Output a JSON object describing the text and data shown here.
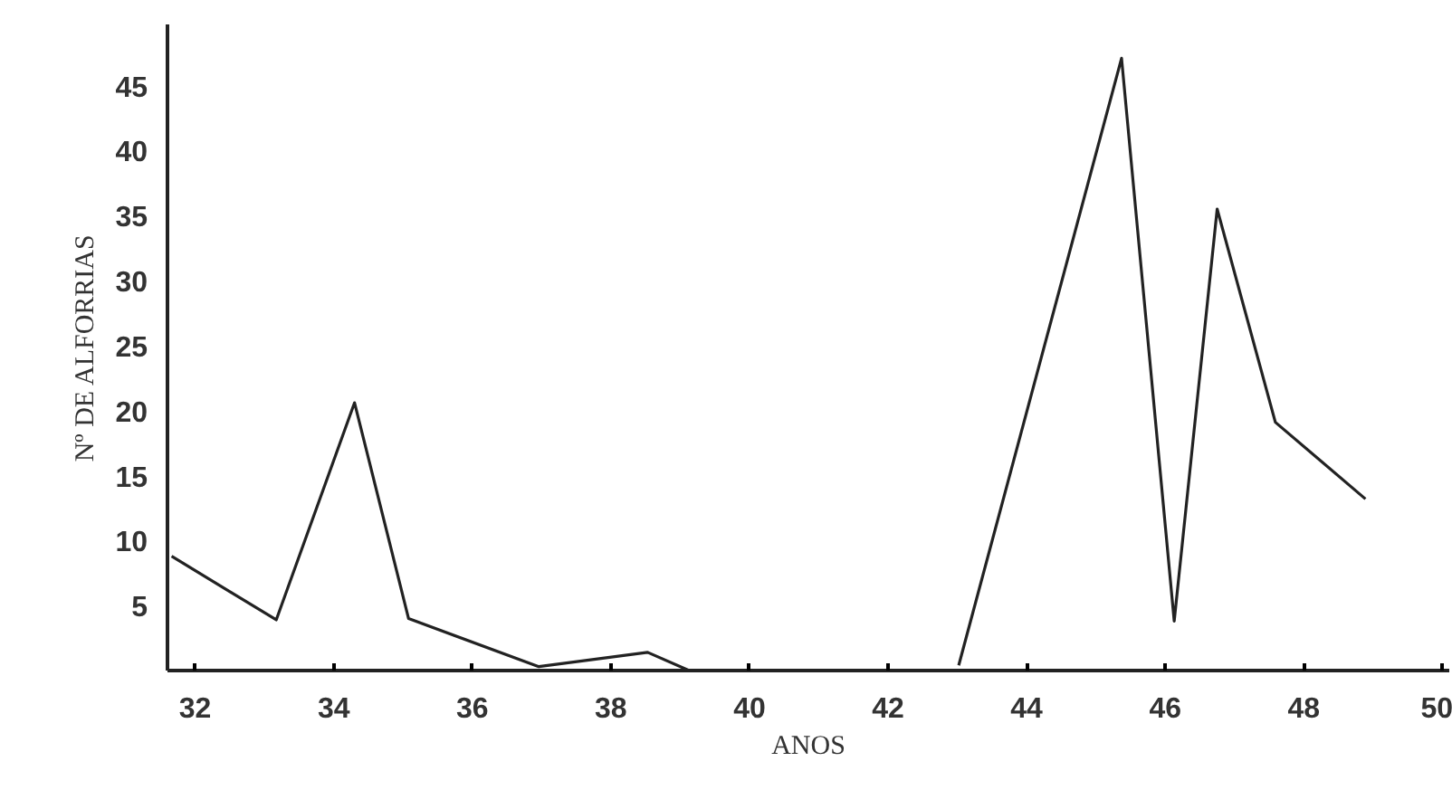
{
  "chart_data": {
    "type": "line",
    "xlabel": "ANOS",
    "ylabel": "Nº DE ALFORRIAS",
    "x": [
      31.66,
      33.17,
      34.3,
      35.08,
      36.96,
      38.53,
      39.13,
      null,
      43.02,
      45.37,
      46.13,
      46.75,
      47.59,
      48.89
    ],
    "series": [
      {
        "color": "#222222",
        "values": [
          8.8,
          3.9,
          20.6,
          4.0,
          0.3,
          1.4,
          0,
          null,
          0.4,
          47.1,
          3.8,
          35.5,
          19.1,
          13.2
        ]
      }
    ],
    "xlim": [
      31.6,
      50.1
    ],
    "ylim": [
      0,
      49.7
    ],
    "xticks": [
      32,
      34,
      36,
      38,
      40,
      42,
      44,
      46,
      48,
      50
    ],
    "yticks": [
      5,
      10,
      15,
      20,
      25,
      30,
      35,
      40,
      45
    ],
    "grid": false,
    "marker": "none",
    "line_style": "solid"
  }
}
